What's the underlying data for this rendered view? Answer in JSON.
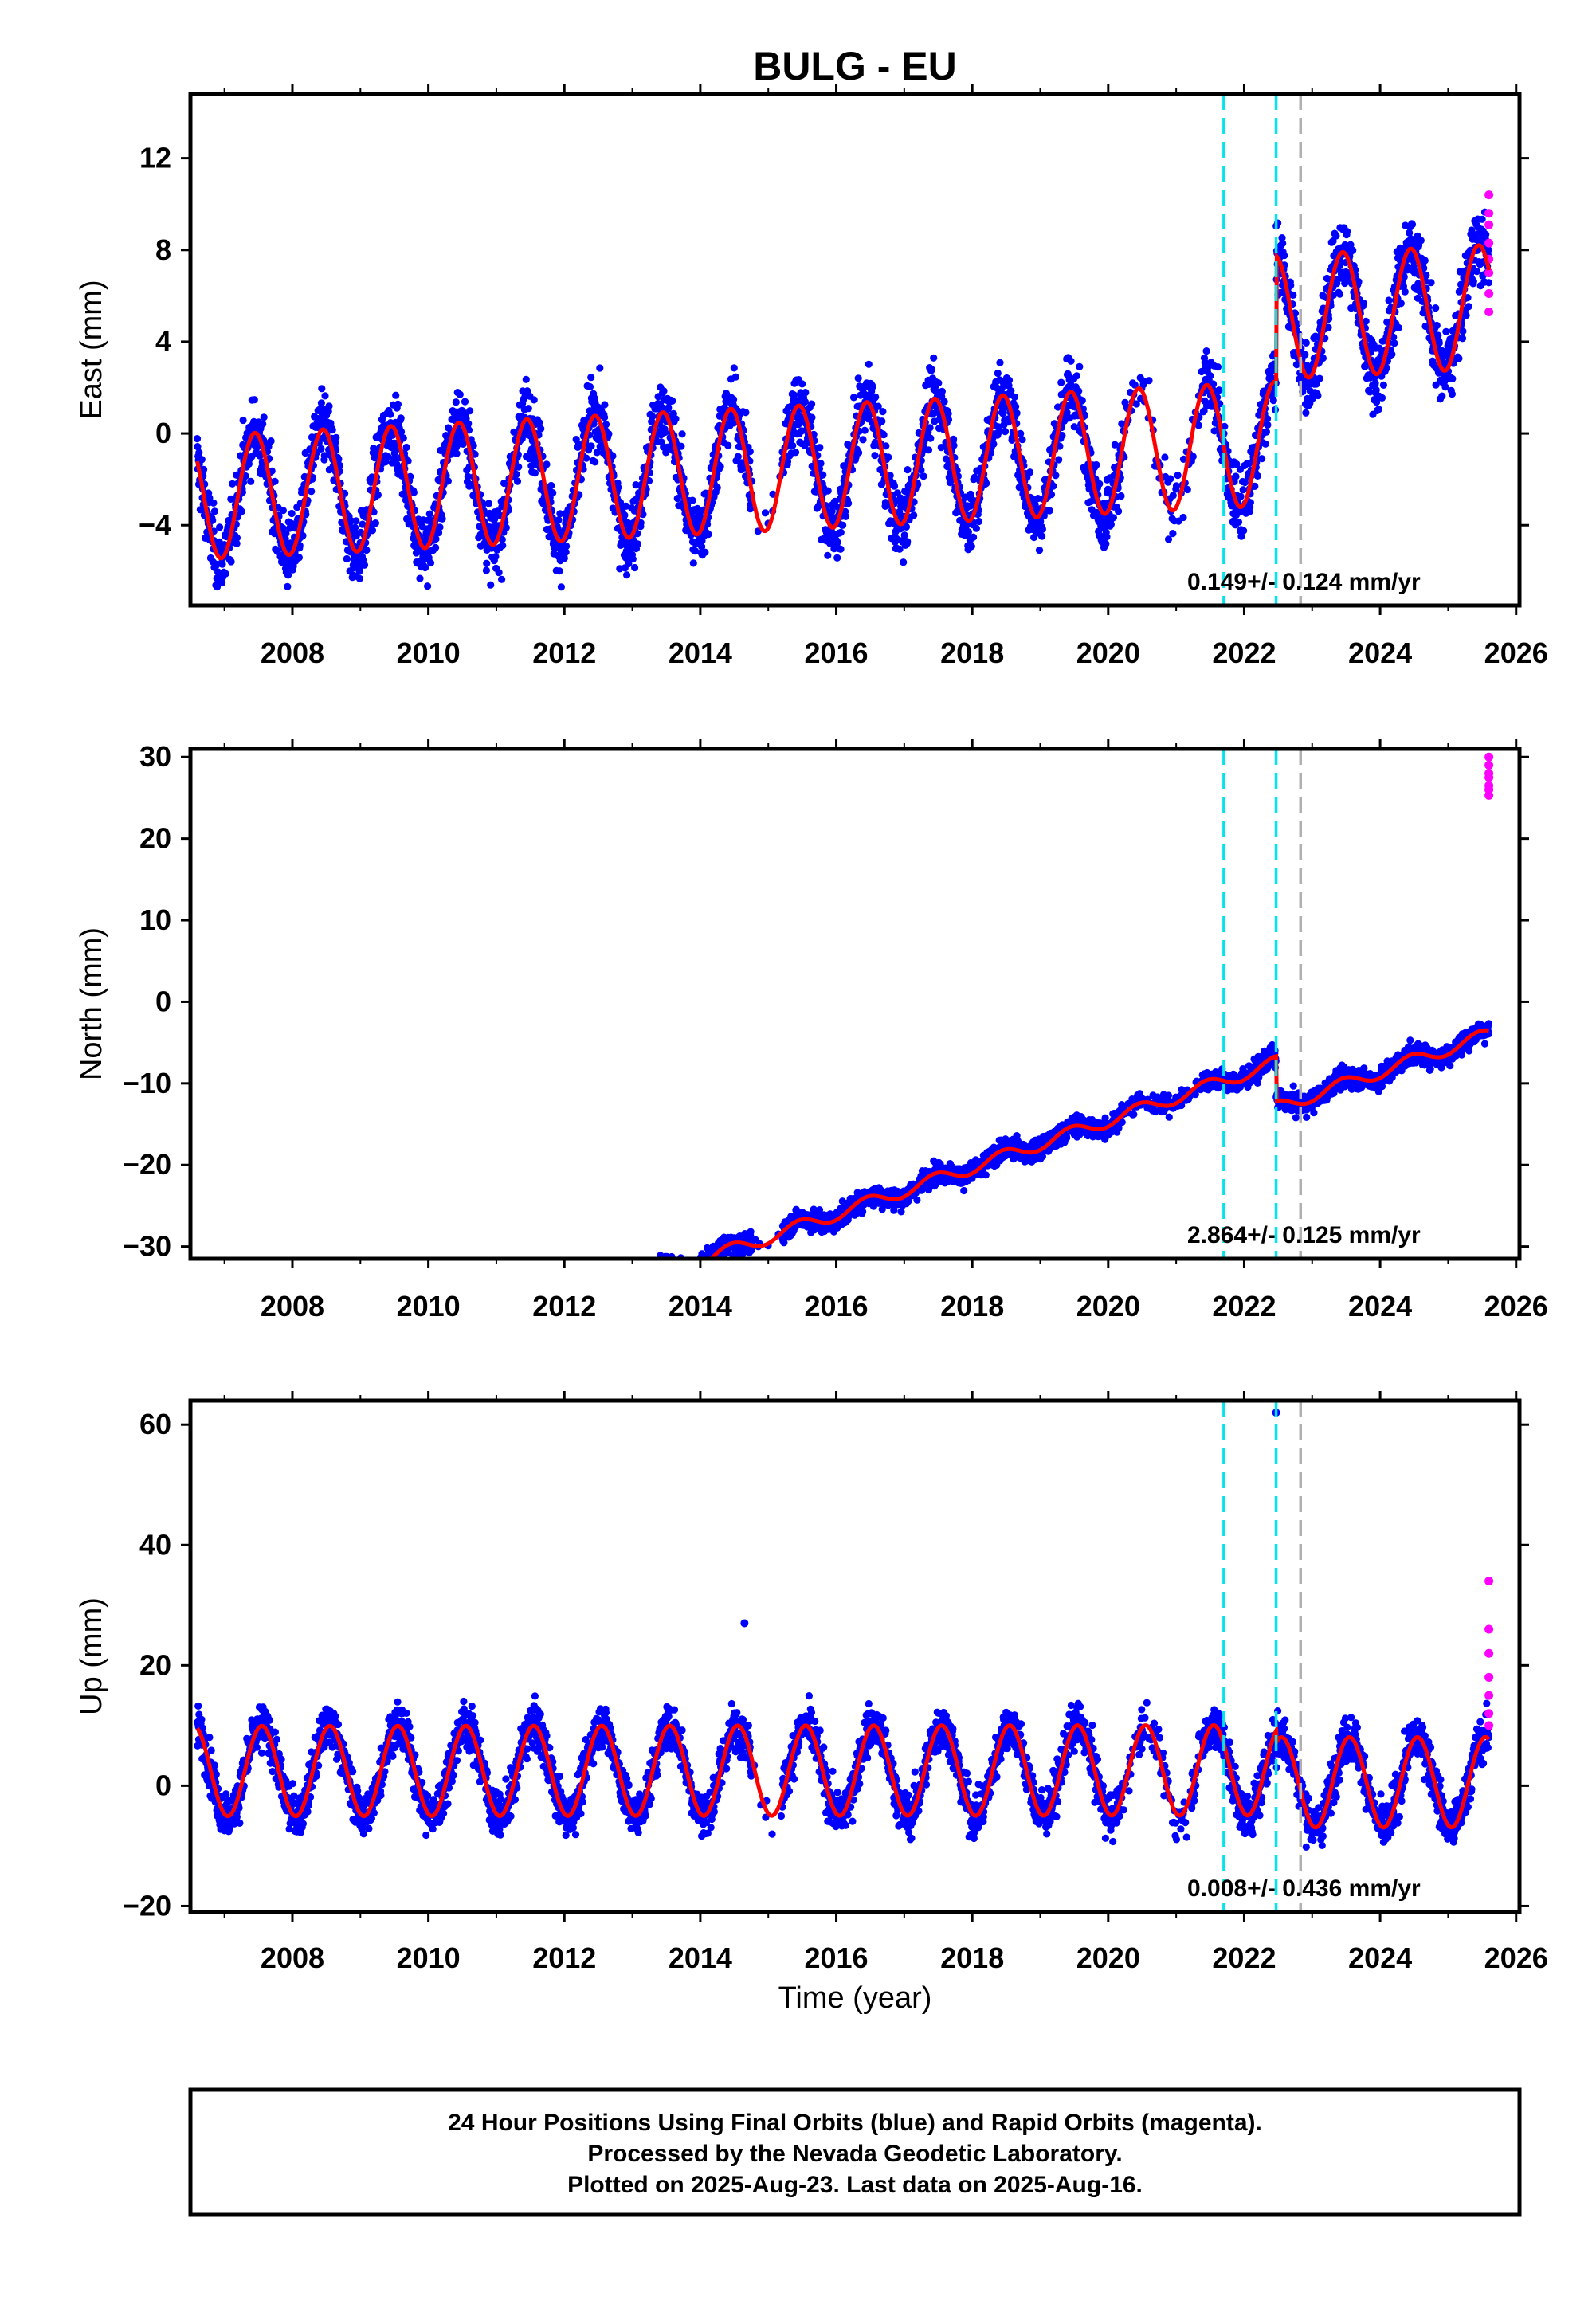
{
  "title": "BULG - EU",
  "xlabel": "Time (year)",
  "x_ticks": [
    2008,
    2010,
    2012,
    2014,
    2016,
    2018,
    2020,
    2022,
    2024,
    2026
  ],
  "xlim": [
    2006.5,
    2026.05
  ],
  "event_lines": [
    {
      "x": 2021.7,
      "color": "#00e5ee"
    },
    {
      "x": 2022.47,
      "color": "#00e5ee"
    },
    {
      "x": 2022.83,
      "color": "#b0b0b0"
    }
  ],
  "colors": {
    "final": "#0000ff",
    "rapid": "#ff00ff",
    "model": "#ff0000"
  },
  "chart_data": [
    {
      "type": "scatter",
      "name": "east",
      "ylabel": "East (mm)",
      "ylim": [
        -7.5,
        14.8
      ],
      "y_ticks": [
        -4,
        0,
        4,
        8,
        12
      ],
      "rate_text": "0.149+/- 0.124 mm/yr",
      "model": {
        "start": 2006.6,
        "end": 2025.6,
        "slope": 0.149,
        "offset_before": -1.4,
        "amplitude": 2.7,
        "phase_year": 2007.45,
        "steps": [
          {
            "x": 2021.5,
            "dy": 0.0
          },
          {
            "x": 2022.47,
            "dy": 5.5
          }
        ],
        "noise": 1.4,
        "residual_slope_after": 0.0
      }
    },
    {
      "type": "scatter",
      "name": "north",
      "ylabel": "North (mm)",
      "ylim": [
        -31.5,
        31
      ],
      "y_ticks": [
        -30,
        -20,
        -10,
        0,
        10,
        20,
        30
      ],
      "rate_text": "2.864+/- 0.125 mm/yr",
      "model": {
        "start": 2006.6,
        "end": 2025.6,
        "slope": 2.864,
        "offset_before": -26,
        "amplitude": 0.8,
        "phase_year": 2007.45,
        "steps": [
          {
            "x": 2022.47,
            "dy": -5.5
          }
        ],
        "noise": 1.2
      }
    },
    {
      "type": "scatter",
      "name": "up",
      "ylabel": "Up (mm)",
      "ylim": [
        -21,
        64
      ],
      "y_ticks": [
        -20,
        0,
        20,
        40,
        60
      ],
      "rate_text": "0.008+/- 0.436 mm/yr",
      "model": {
        "start": 2006.6,
        "end": 2025.6,
        "slope": 0.008,
        "offset_before": 2.5,
        "amplitude": 7.5,
        "phase_year": 2007.55,
        "steps": [
          {
            "x": 2022.47,
            "dy": -2.0
          }
        ],
        "noise": 3.5
      },
      "outliers": [
        {
          "x": 2022.47,
          "y": 62
        },
        {
          "x": 2014.65,
          "y": 27
        }
      ]
    }
  ],
  "rapid_points": {
    "east": [
      10.4,
      9.6,
      9.1,
      8.3,
      7.6,
      7.0,
      6.1,
      5.3
    ],
    "north": [
      30,
      29,
      28,
      27.5,
      26.5,
      26,
      25.3
    ],
    "up": [
      34,
      26,
      22,
      18,
      15,
      12,
      10
    ]
  },
  "footer": {
    "line1": "24 Hour Positions Using Final Orbits (blue) and Rapid Orbits (magenta).",
    "line2": "Processed by the Nevada Geodetic Laboratory.",
    "line3": "Plotted on 2025-Aug-23. Last data on 2025-Aug-16."
  }
}
